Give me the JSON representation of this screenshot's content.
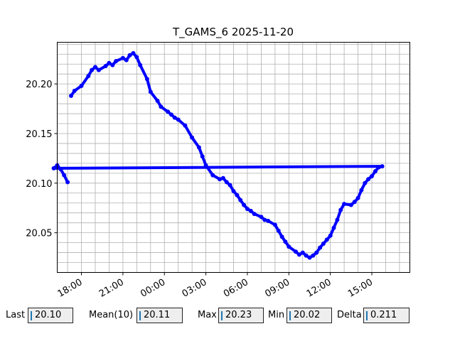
{
  "chart_data": {
    "type": "scatter",
    "title": "T_GAMS_6 2025-11-20",
    "xlabel": "",
    "ylabel": "",
    "x_ticks": [
      "18:00",
      "21:00",
      "00:00",
      "03:00",
      "06:00",
      "09:00",
      "12:00",
      "15:00"
    ],
    "y_ticks": [
      "20.05",
      "20.10",
      "20.15",
      "20.20"
    ],
    "xlim": [
      "2025-11-19 16:15",
      "2025-11-20 17:45"
    ],
    "ylim": [
      20.01,
      20.242
    ],
    "grid": true,
    "marker_color": "#0000ff",
    "series": [
      {
        "x": [
          "17:15",
          "17:30",
          "18:00",
          "18:30",
          "18:45",
          "19:00",
          "19:15",
          "19:45",
          "20:00",
          "20:15",
          "20:30",
          "21:00",
          "21:15",
          "21:30",
          "21:45",
          "22:00",
          "22:15",
          "22:45",
          "23:00",
          "23:30",
          "23:45",
          "00:15",
          "00:30",
          "00:45",
          "01:00",
          "01:30",
          "02:00",
          "02:30",
          "02:45",
          "03:00",
          "03:30",
          "04:00",
          "04:15",
          "04:30",
          "04:45",
          "05:00",
          "05:15",
          "05:30",
          "05:45",
          "06:00",
          "06:15",
          "06:30",
          "07:00",
          "07:15",
          "07:30",
          "08:00",
          "08:15",
          "08:30",
          "08:45",
          "09:00",
          "09:30",
          "09:45",
          "10:00",
          "10:15",
          "10:30",
          "10:45",
          "11:00",
          "11:15",
          "11:30",
          "11:45",
          "12:00",
          "12:15",
          "12:30",
          "12:45",
          "13:00",
          "13:30",
          "13:45",
          "14:00",
          "14:15",
          "14:30",
          "14:45",
          "15:00",
          "15:15",
          "15:30",
          "15:45",
          "16:00",
          "16:15",
          "16:30",
          "16:45",
          "17:00"
        ],
        "y": [
          20.188,
          20.193,
          20.198,
          20.208,
          20.214,
          20.217,
          20.214,
          20.218,
          20.221,
          20.219,
          20.223,
          20.226,
          20.224,
          20.229,
          20.231,
          20.227,
          20.219,
          20.205,
          20.192,
          20.183,
          20.177,
          20.172,
          20.169,
          20.166,
          20.164,
          20.158,
          20.146,
          20.136,
          20.127,
          20.118,
          20.108,
          20.104,
          20.105,
          20.101,
          20.098,
          20.092,
          20.088,
          20.083,
          20.078,
          20.074,
          20.072,
          20.069,
          20.066,
          20.063,
          20.062,
          20.058,
          20.052,
          20.046,
          20.041,
          20.036,
          20.031,
          20.028,
          20.03,
          20.027,
          20.025,
          20.027,
          20.03,
          20.035,
          20.039,
          20.043,
          20.047,
          20.055,
          20.063,
          20.073,
          20.079,
          20.078,
          20.081,
          20.085,
          20.093,
          20.1,
          20.104,
          20.107,
          20.112,
          20.116,
          20.117,
          20.115,
          20.118,
          20.114,
          20.108,
          20.101
        ]
      }
    ]
  },
  "stats": {
    "last_label": "Last",
    "last_value": "20.10",
    "mean_label": "Mean(10)",
    "mean_value": "20.11",
    "max_label": "Max",
    "max_value": "20.23",
    "min_label": "Min",
    "min_value": "20.02",
    "delta_label": "Delta",
    "delta_value": "0.211"
  }
}
